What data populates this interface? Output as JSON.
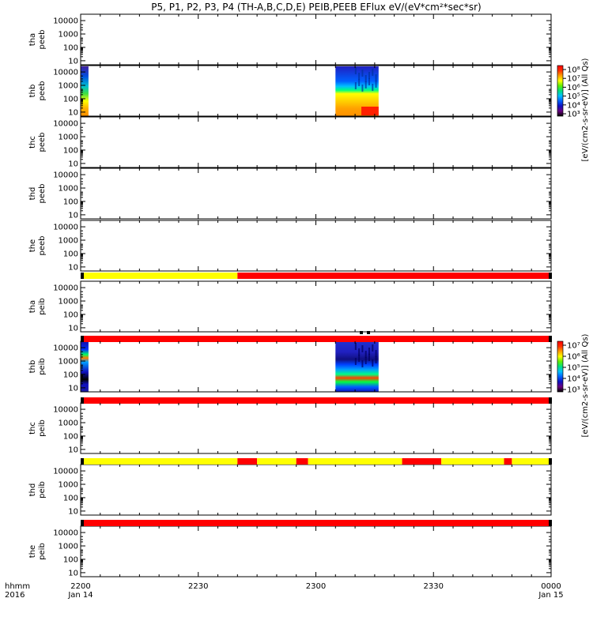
{
  "title": "P5, P1, P2, P3, P4 (TH-A,B,C,D,E) PEIB,PEEB EFlux eV/(eV*cm²*sec*sr)",
  "x_axis": {
    "label_left": "hhmm",
    "year_left": "2016",
    "ticks": [
      "2200",
      "2230",
      "2300",
      "2330",
      "0000"
    ],
    "dates": [
      "Jan 14",
      "",
      "",
      "",
      "Jan 15"
    ]
  },
  "y_ticks": [
    "10000",
    "1000",
    "100",
    "10"
  ],
  "colorbars": [
    {
      "label": "[eV/(cm2-s-sr-eV)] (All Qs)",
      "ticks": [
        "10⁸",
        "10⁷",
        "10⁶",
        "10⁵",
        "10⁴",
        "10³"
      ]
    },
    {
      "label": "[eV/(cm2-s-sr-eV)] (All Qs)",
      "ticks": [
        "10⁷",
        "10⁶",
        "10⁵",
        "10⁴",
        "10³"
      ]
    }
  ],
  "colors": {
    "flag_yellow": "#ffff00",
    "flag_red": "#ff0000",
    "spectro_palette": [
      "#000000",
      "#6a0080",
      "#1010c0",
      "#0060ff",
      "#00c0ff",
      "#00e080",
      "#60f000",
      "#ffff00",
      "#ffa000",
      "#ff3000",
      "#ff0000"
    ]
  },
  "chart_data": {
    "type": "heatmap",
    "x_range_hhmm": [
      "2200",
      "0000"
    ],
    "y_scale": "log",
    "y_range_eV": [
      5,
      30000
    ],
    "panels": [
      {
        "id": "p0",
        "label1": "tha",
        "label2": "peeb",
        "data": []
      },
      {
        "id": "p1",
        "label1": "thb",
        "label2": "peeb",
        "colorbar": 0,
        "data": [
          {
            "x_start": "2200",
            "x_end": "2202",
            "kind": "low-energy"
          },
          {
            "x_start": "2305",
            "x_end": "2316",
            "kind": "burst-e"
          }
        ]
      },
      {
        "id": "p2",
        "label1": "thc",
        "label2": "peeb",
        "data": []
      },
      {
        "id": "p3",
        "label1": "thd",
        "label2": "peeb",
        "data": []
      },
      {
        "id": "p4",
        "label1": "the",
        "label2": "peeb",
        "data": []
      },
      {
        "id": "p5",
        "label1": "tha",
        "label2": "peib",
        "data": []
      },
      {
        "id": "p6",
        "label1": "thb",
        "label2": "peib",
        "colorbar": 1,
        "data": [
          {
            "x_start": "2200",
            "x_end": "2202",
            "kind": "low-energy"
          },
          {
            "x_start": "2305",
            "x_end": "2316",
            "kind": "burst-i"
          }
        ]
      },
      {
        "id": "p7",
        "label1": "thc",
        "label2": "peib",
        "data": []
      },
      {
        "id": "p8",
        "label1": "thd",
        "label2": "peib",
        "data": []
      },
      {
        "id": "p9",
        "label1": "the",
        "label2": "peib",
        "data": []
      }
    ],
    "flag_bars": [
      {
        "segments": [
          [
            "2200",
            "2240",
            "yellow"
          ],
          [
            "2240",
            "0000",
            "red"
          ]
        ]
      },
      {
        "segments": [
          [
            "2200",
            "0000",
            "red"
          ]
        ]
      },
      {
        "segments": [
          [
            "2200",
            "0000",
            "red"
          ]
        ]
      },
      {
        "segments": [
          [
            "2200",
            "2240",
            "yellow"
          ],
          [
            "2240",
            "2245",
            "red"
          ],
          [
            "2245",
            "2255",
            "yellow"
          ],
          [
            "2255",
            "2258",
            "red"
          ],
          [
            "2258",
            "2322",
            "yellow"
          ],
          [
            "2322",
            "2332",
            "red"
          ],
          [
            "2332",
            "2348",
            "yellow"
          ],
          [
            "2348",
            "2350",
            "red"
          ],
          [
            "2350",
            "0000",
            "yellow"
          ]
        ]
      },
      {
        "segments": [
          [
            "2200",
            "0000",
            "red"
          ]
        ]
      }
    ]
  }
}
